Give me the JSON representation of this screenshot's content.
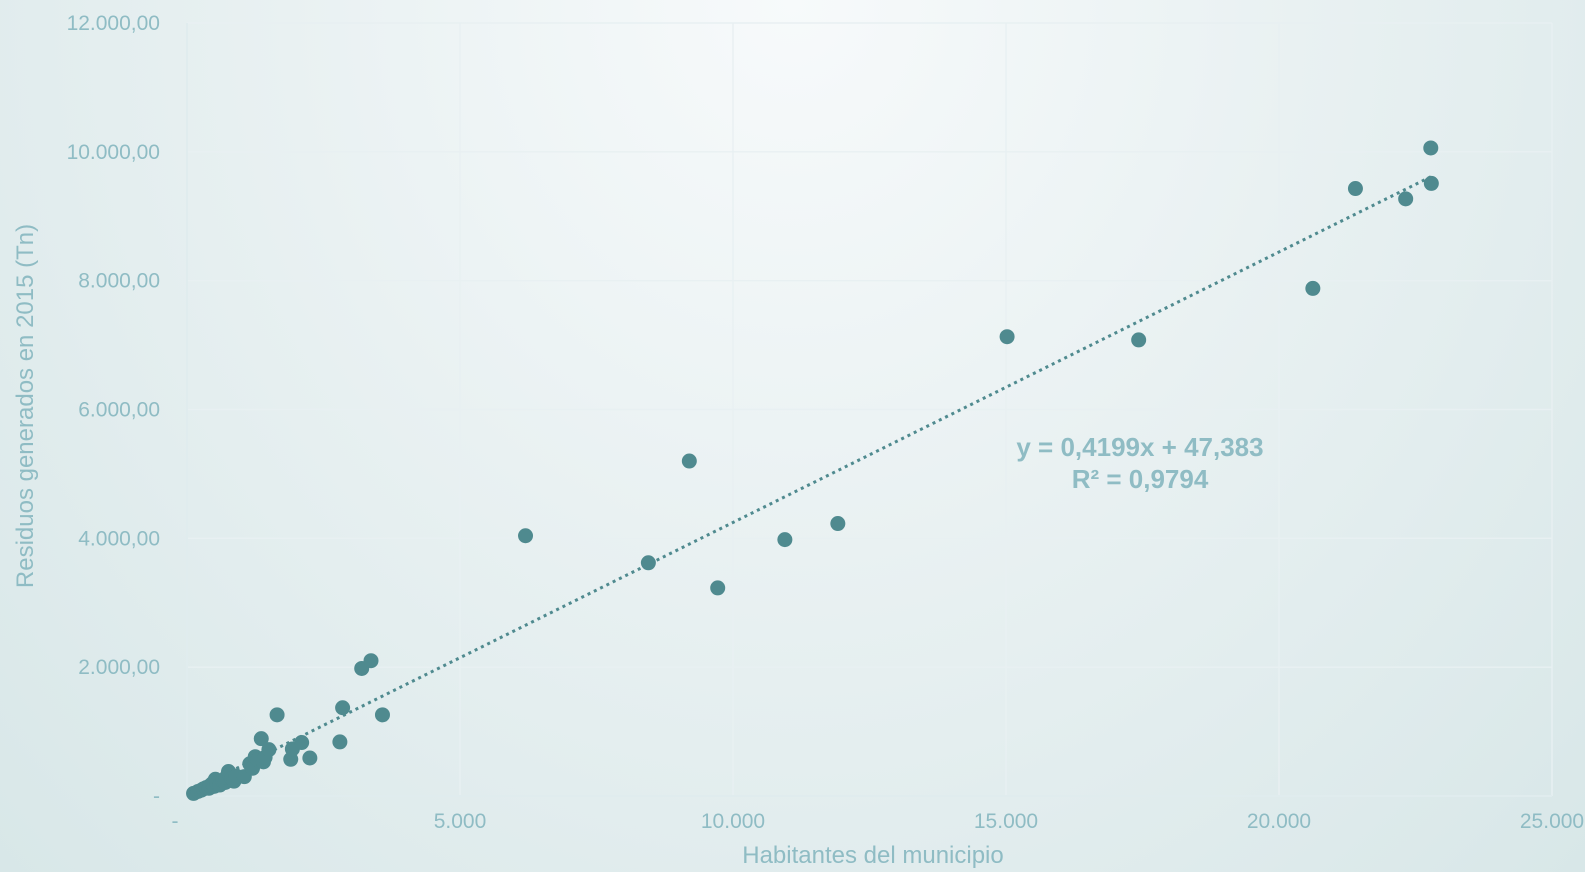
{
  "chart_data": {
    "type": "scatter",
    "title": "",
    "xlabel": "Habitantes del municipio",
    "ylabel": "Residuos generados en 2015 (Tn)",
    "xlim": [
      0,
      25000
    ],
    "ylim": [
      0,
      12000
    ],
    "grid": true,
    "x_ticks": [
      0,
      5000,
      10000,
      15000,
      20000,
      25000
    ],
    "x_tick_labels": [
      "-",
      "5.000",
      "10.000",
      "15.000",
      "20.000",
      "25.000"
    ],
    "y_ticks": [
      0,
      2000,
      4000,
      6000,
      8000,
      10000,
      12000
    ],
    "y_tick_labels": [
      "-",
      "2.000,00",
      "4.000,00",
      "6.000,00",
      "8.000,00",
      "10.000,00",
      "12.000,00"
    ],
    "marker_color": "#4f8a8f",
    "trendline": {
      "style": "dotted",
      "slope": 0.4199,
      "intercept": 47.383,
      "x_range": [
        100,
        22800
      ],
      "equation_label": "y = 0,4199x + 47,383",
      "r2_label": "R² = 0,9794",
      "color": "#4f8a8f"
    },
    "points": [
      [
        120,
        40
      ],
      [
        200,
        70
      ],
      [
        260,
        90
      ],
      [
        300,
        110
      ],
      [
        350,
        130
      ],
      [
        400,
        120
      ],
      [
        420,
        160
      ],
      [
        460,
        190
      ],
      [
        500,
        150
      ],
      [
        520,
        260
      ],
      [
        550,
        200
      ],
      [
        600,
        170
      ],
      [
        650,
        240
      ],
      [
        700,
        210
      ],
      [
        720,
        290
      ],
      [
        760,
        380
      ],
      [
        780,
        330
      ],
      [
        820,
        270
      ],
      [
        860,
        230
      ],
      [
        900,
        310
      ],
      [
        1050,
        300
      ],
      [
        1150,
        500
      ],
      [
        1200,
        430
      ],
      [
        1250,
        610
      ],
      [
        1300,
        560
      ],
      [
        1360,
        890
      ],
      [
        1400,
        530
      ],
      [
        1430,
        600
      ],
      [
        1500,
        720
      ],
      [
        1650,
        1260
      ],
      [
        1900,
        570
      ],
      [
        1930,
        730
      ],
      [
        2100,
        830
      ],
      [
        2250,
        590
      ],
      [
        2800,
        840
      ],
      [
        2850,
        1370
      ],
      [
        3200,
        1980
      ],
      [
        3370,
        2100
      ],
      [
        3580,
        1260
      ],
      [
        6200,
        4040
      ],
      [
        8450,
        3620
      ],
      [
        9200,
        5200
      ],
      [
        9720,
        3230
      ],
      [
        10950,
        3980
      ],
      [
        11920,
        4230
      ],
      [
        15020,
        7130
      ],
      [
        17430,
        7080
      ],
      [
        20620,
        7880
      ],
      [
        21400,
        9430
      ],
      [
        22320,
        9270
      ],
      [
        22780,
        10060
      ],
      [
        22790,
        9510
      ]
    ]
  }
}
